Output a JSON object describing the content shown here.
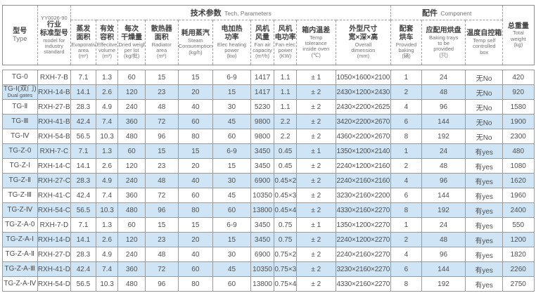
{
  "table": {
    "header": {
      "type_col": {
        "zh": "型号",
        "en": "Type"
      },
      "standard_col": {
        "code": "YY0026-90",
        "zh": [
          "行业",
          "标准型号"
        ],
        "en": [
          "model for",
          "industry",
          "standard"
        ]
      },
      "tech_group": {
        "zh": "技术参数",
        "en": "Tech. Parameters"
      },
      "component_group": {
        "zh": "配件",
        "en": "Component"
      },
      "columns": [
        {
          "key": "evap",
          "zh": [
            "蒸发",
            "面积"
          ],
          "en": [
            "Evaporative",
            "area",
            "(m²)"
          ]
        },
        {
          "key": "volume",
          "zh": [
            "有效",
            "容积"
          ],
          "en": [
            "Effecitve",
            "volume",
            "(m³)"
          ]
        },
        {
          "key": "dried",
          "zh": [
            "每次",
            "干燥量"
          ],
          "en": [
            "Dried weight",
            "per lot",
            "(kg/批)"
          ]
        },
        {
          "key": "radiator",
          "zh": [
            "散热器",
            "面积"
          ],
          "en": [
            "Radiator",
            "area",
            "(m²)"
          ]
        },
        {
          "key": "steam",
          "zh": [
            "耗用蒸汽"
          ],
          "en": [
            "Steam",
            "Consunmption",
            "(kg/h)"
          ]
        },
        {
          "key": "heat",
          "zh": [
            "电加热",
            "功率"
          ],
          "en": [
            "Elec heating",
            "power",
            "(kw)"
          ]
        },
        {
          "key": "fan-air",
          "zh": [
            "风机",
            "风量"
          ],
          "en": [
            "Fan air",
            "capacity",
            "(m³/h)"
          ]
        },
        {
          "key": "fan-power",
          "zh": [
            "风机",
            "电功率"
          ],
          "en": [
            "Fan elec",
            "power",
            "(KW)"
          ]
        },
        {
          "key": "temp-diff",
          "zh": [
            "箱内温差"
          ],
          "en": [
            "Temp",
            "tolerance",
            "inside oven",
            "(℃)"
          ]
        },
        {
          "key": "dimension",
          "zh": [
            "外型尺寸",
            "宽×深×高"
          ],
          "en": [
            "Overall",
            "dimension",
            "(mm)"
          ]
        },
        {
          "key": "baking-cart",
          "zh": [
            "配套",
            "烘车"
          ],
          "en": [
            "Provided",
            "baking",
            "(辆)"
          ]
        },
        {
          "key": "trays",
          "zh": [
            "应配用烘盘"
          ],
          "en": [
            "Baking trays",
            "to be",
            "provided",
            "(只)"
          ]
        },
        {
          "key": "temp-box",
          "zh": [
            "温度自控箱"
          ],
          "en": [
            "Temp self",
            "controlled",
            "box"
          ]
        }
      ],
      "weight_col": {
        "key": "weight",
        "zh": [
          "总重量"
        ],
        "en": [
          "Total",
          "weight",
          "(kg)"
        ]
      }
    },
    "rows": [
      {
        "type": [
          "TG-0"
        ],
        "model": "RXH-7-B",
        "values": [
          "7.1",
          "1.3",
          "60",
          "15",
          "15",
          "6-9",
          "1417",
          "1.1",
          "± 1",
          "1050×1600×2100",
          "1",
          "24",
          "无No",
          "420"
        ]
      },
      {
        "type": [
          "TG-Ⅰ(双门)",
          "Dual gates"
        ],
        "model": "RXH-14-B",
        "values": [
          "14.1",
          "2.6",
          "120",
          "23",
          "20",
          "15",
          "1417",
          "1.1",
          "± 2",
          "2430×1200×2430",
          "2",
          "48",
          "无No",
          "920"
        ]
      },
      {
        "type": [
          "TG-Ⅱ"
        ],
        "model": "RXH-27-B",
        "values": [
          "28.3",
          "4.9",
          "240",
          "48",
          "40",
          "30",
          "5230",
          "1.1",
          "± 2",
          "2430×2200×2625",
          "4",
          "96",
          "无No",
          "1580"
        ]
      },
      {
        "type": [
          "TG-Ⅲ"
        ],
        "model": "RXH-41-B",
        "values": [
          "42.4",
          "7.4",
          "360",
          "72",
          "60",
          "45",
          "9800",
          "2.2",
          "± 2",
          "3420×2200×2670",
          "6",
          "144",
          "无No",
          "1900"
        ]
      },
      {
        "type": [
          "TG-Ⅳ"
        ],
        "model": "RXH-54-B",
        "values": [
          "56.5",
          "10.3",
          "480",
          "96",
          "80",
          "60",
          "9800",
          "2.2",
          "± 2",
          "4360×2200×2670",
          "8",
          "192",
          "无No",
          "2300"
        ]
      },
      {
        "type": [
          "TG-Z-0"
        ],
        "model": "RXH-7-C",
        "values": [
          "7.1",
          "1.3",
          "60",
          "15",
          "15",
          "6-9",
          "3450",
          "0.45",
          "± 1",
          "1350×1200×2140",
          "1",
          "24",
          "有yes",
          "480"
        ]
      },
      {
        "type": [
          "TG-Z-Ⅰ"
        ],
        "model": "RXH-14-C",
        "values": [
          "14.1",
          "2.6",
          "120",
          "23",
          "20",
          "15",
          "3450",
          "0.45",
          "± 2",
          "2240×1200×2160",
          "2",
          "48",
          "有yes",
          "1080"
        ]
      },
      {
        "type": [
          "TG-Z-Ⅱ"
        ],
        "model": "RXH-27-C",
        "values": [
          "28.3",
          "4.9",
          "240",
          "48",
          "40",
          "30",
          "6900",
          "0.45×2",
          "± 2",
          "2240×2160×2160",
          "4",
          "96",
          "有yes",
          "1620"
        ]
      },
      {
        "type": [
          "TG-Z-Ⅲ"
        ],
        "model": "RXH-41-C",
        "values": [
          "42.4",
          "7.4",
          "360",
          "72",
          "60",
          "45",
          "10350",
          "0.45×3",
          "± 2",
          "3230×2160×2200",
          "6",
          "144",
          "有yes",
          "1960"
        ]
      },
      {
        "type": [
          "TG-Z-Ⅳ"
        ],
        "model": "RXH-54-C",
        "values": [
          "56.5",
          "10.3",
          "480",
          "96",
          "80",
          "60",
          "13800",
          "0.45×4",
          "± 2",
          "4330×2160×2270",
          "8",
          "192",
          "有yes",
          "2400"
        ]
      },
      {
        "type": [
          "TG-Z-A-0"
        ],
        "model": "RXH-7-D",
        "values": [
          "7.1",
          "1.3",
          "60",
          "15",
          "15",
          "6-9",
          "3450",
          "0.75",
          "± 1",
          "1350×1200×2270",
          "1",
          "24",
          "有yes",
          "550"
        ]
      },
      {
        "type": [
          "TG-Z-A-Ⅰ"
        ],
        "model": "RXH-14-D",
        "values": [
          "14.1",
          "2.6",
          "120",
          "23",
          "20",
          "15",
          "3450",
          "0.75",
          "± 2",
          "2240×1200×2270",
          "2",
          "48",
          "有yes",
          "1200"
        ]
      },
      {
        "type": [
          "TG-Z-A-Ⅱ"
        ],
        "model": "RXH-27-D",
        "values": [
          "28.3",
          "4.9",
          "240",
          "48",
          "40",
          "30",
          "6900",
          "0.75×2",
          "± 2",
          "2240×2160×2270",
          "4",
          "96",
          "有yes",
          "1820"
        ]
      },
      {
        "type": [
          "TG-Z-A-Ⅲ"
        ],
        "model": "RXH-41-D",
        "values": [
          "42.4",
          "7.4",
          "360",
          "72",
          "60",
          "45",
          "10350",
          "0.75×3",
          "± 2",
          "3230×2160×2270",
          "6",
          "144",
          "有yes",
          "2260"
        ]
      },
      {
        "type": [
          "TG-Z-A-Ⅳ"
        ],
        "model": "RXH-54-D",
        "values": [
          "56.5",
          "10.3",
          "480",
          "96",
          "80",
          "60",
          "13800",
          "0.75×4",
          "± 2",
          "4330×2160×2270",
          "8",
          "192",
          "有yes",
          "2750"
        ]
      }
    ],
    "colors": {
      "stripe_blue": "#cfe5f5",
      "border_gray": "#9b9b9b",
      "text_gray": "#4f4f4f"
    }
  }
}
